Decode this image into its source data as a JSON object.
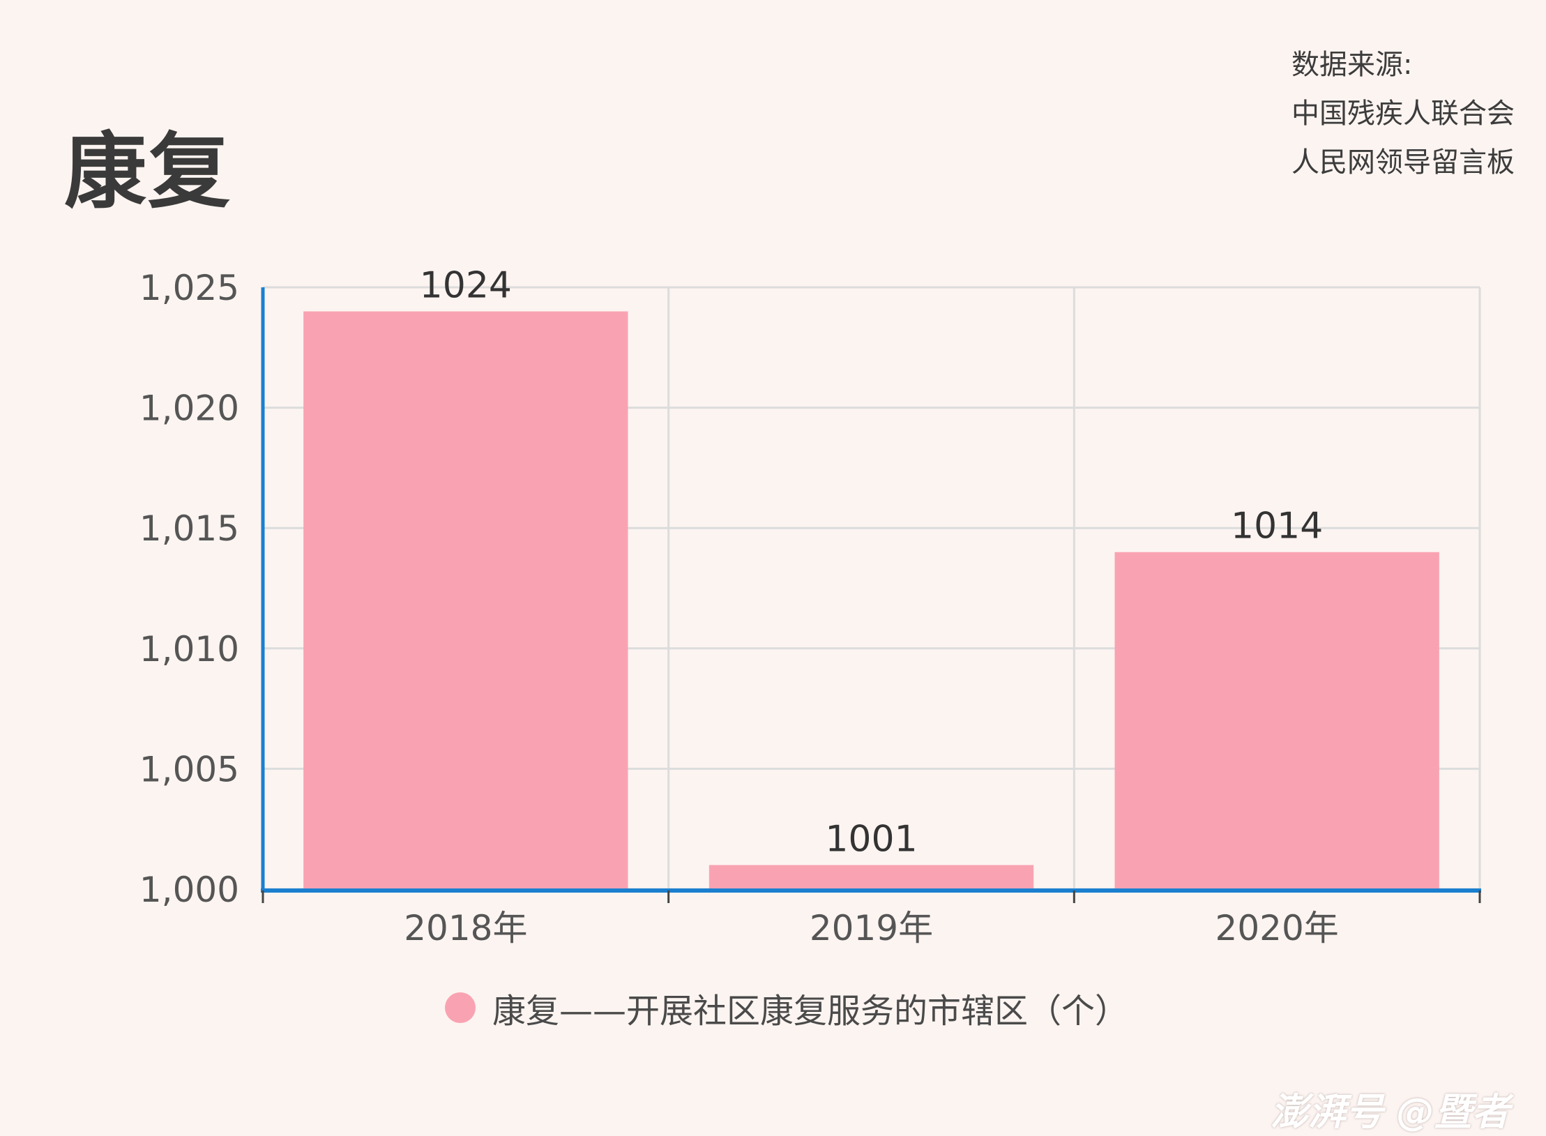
{
  "title": "康复",
  "source": {
    "label": "数据来源:",
    "lines": [
      "中国残疾人联合会",
      "人民网领导留言板"
    ]
  },
  "watermark": "澎湃号 @暨者",
  "legend": {
    "label": "康复——开展社区康复服务的市辖区（个）",
    "color": "#f9a3b2"
  },
  "chart_data": {
    "type": "bar",
    "categories": [
      "2018年",
      "2019年",
      "2020年"
    ],
    "series": [
      {
        "name": "康复——开展社区康复服务的市辖区（个）",
        "values": [
          1024,
          1001,
          1014
        ]
      }
    ],
    "data_labels": [
      "1024",
      "1001",
      "1014"
    ],
    "ylim": [
      1000,
      1025
    ],
    "yticks": [
      1000,
      1005,
      1010,
      1015,
      1020,
      1025
    ],
    "ytick_labels": [
      "1,000",
      "1,005",
      "1,010",
      "1,015",
      "1,020",
      "1,025"
    ],
    "grid": true,
    "bar_color": "#f9a3b2",
    "axis_color": "#1a7fcf",
    "grid_color": "#dcdcdc"
  }
}
